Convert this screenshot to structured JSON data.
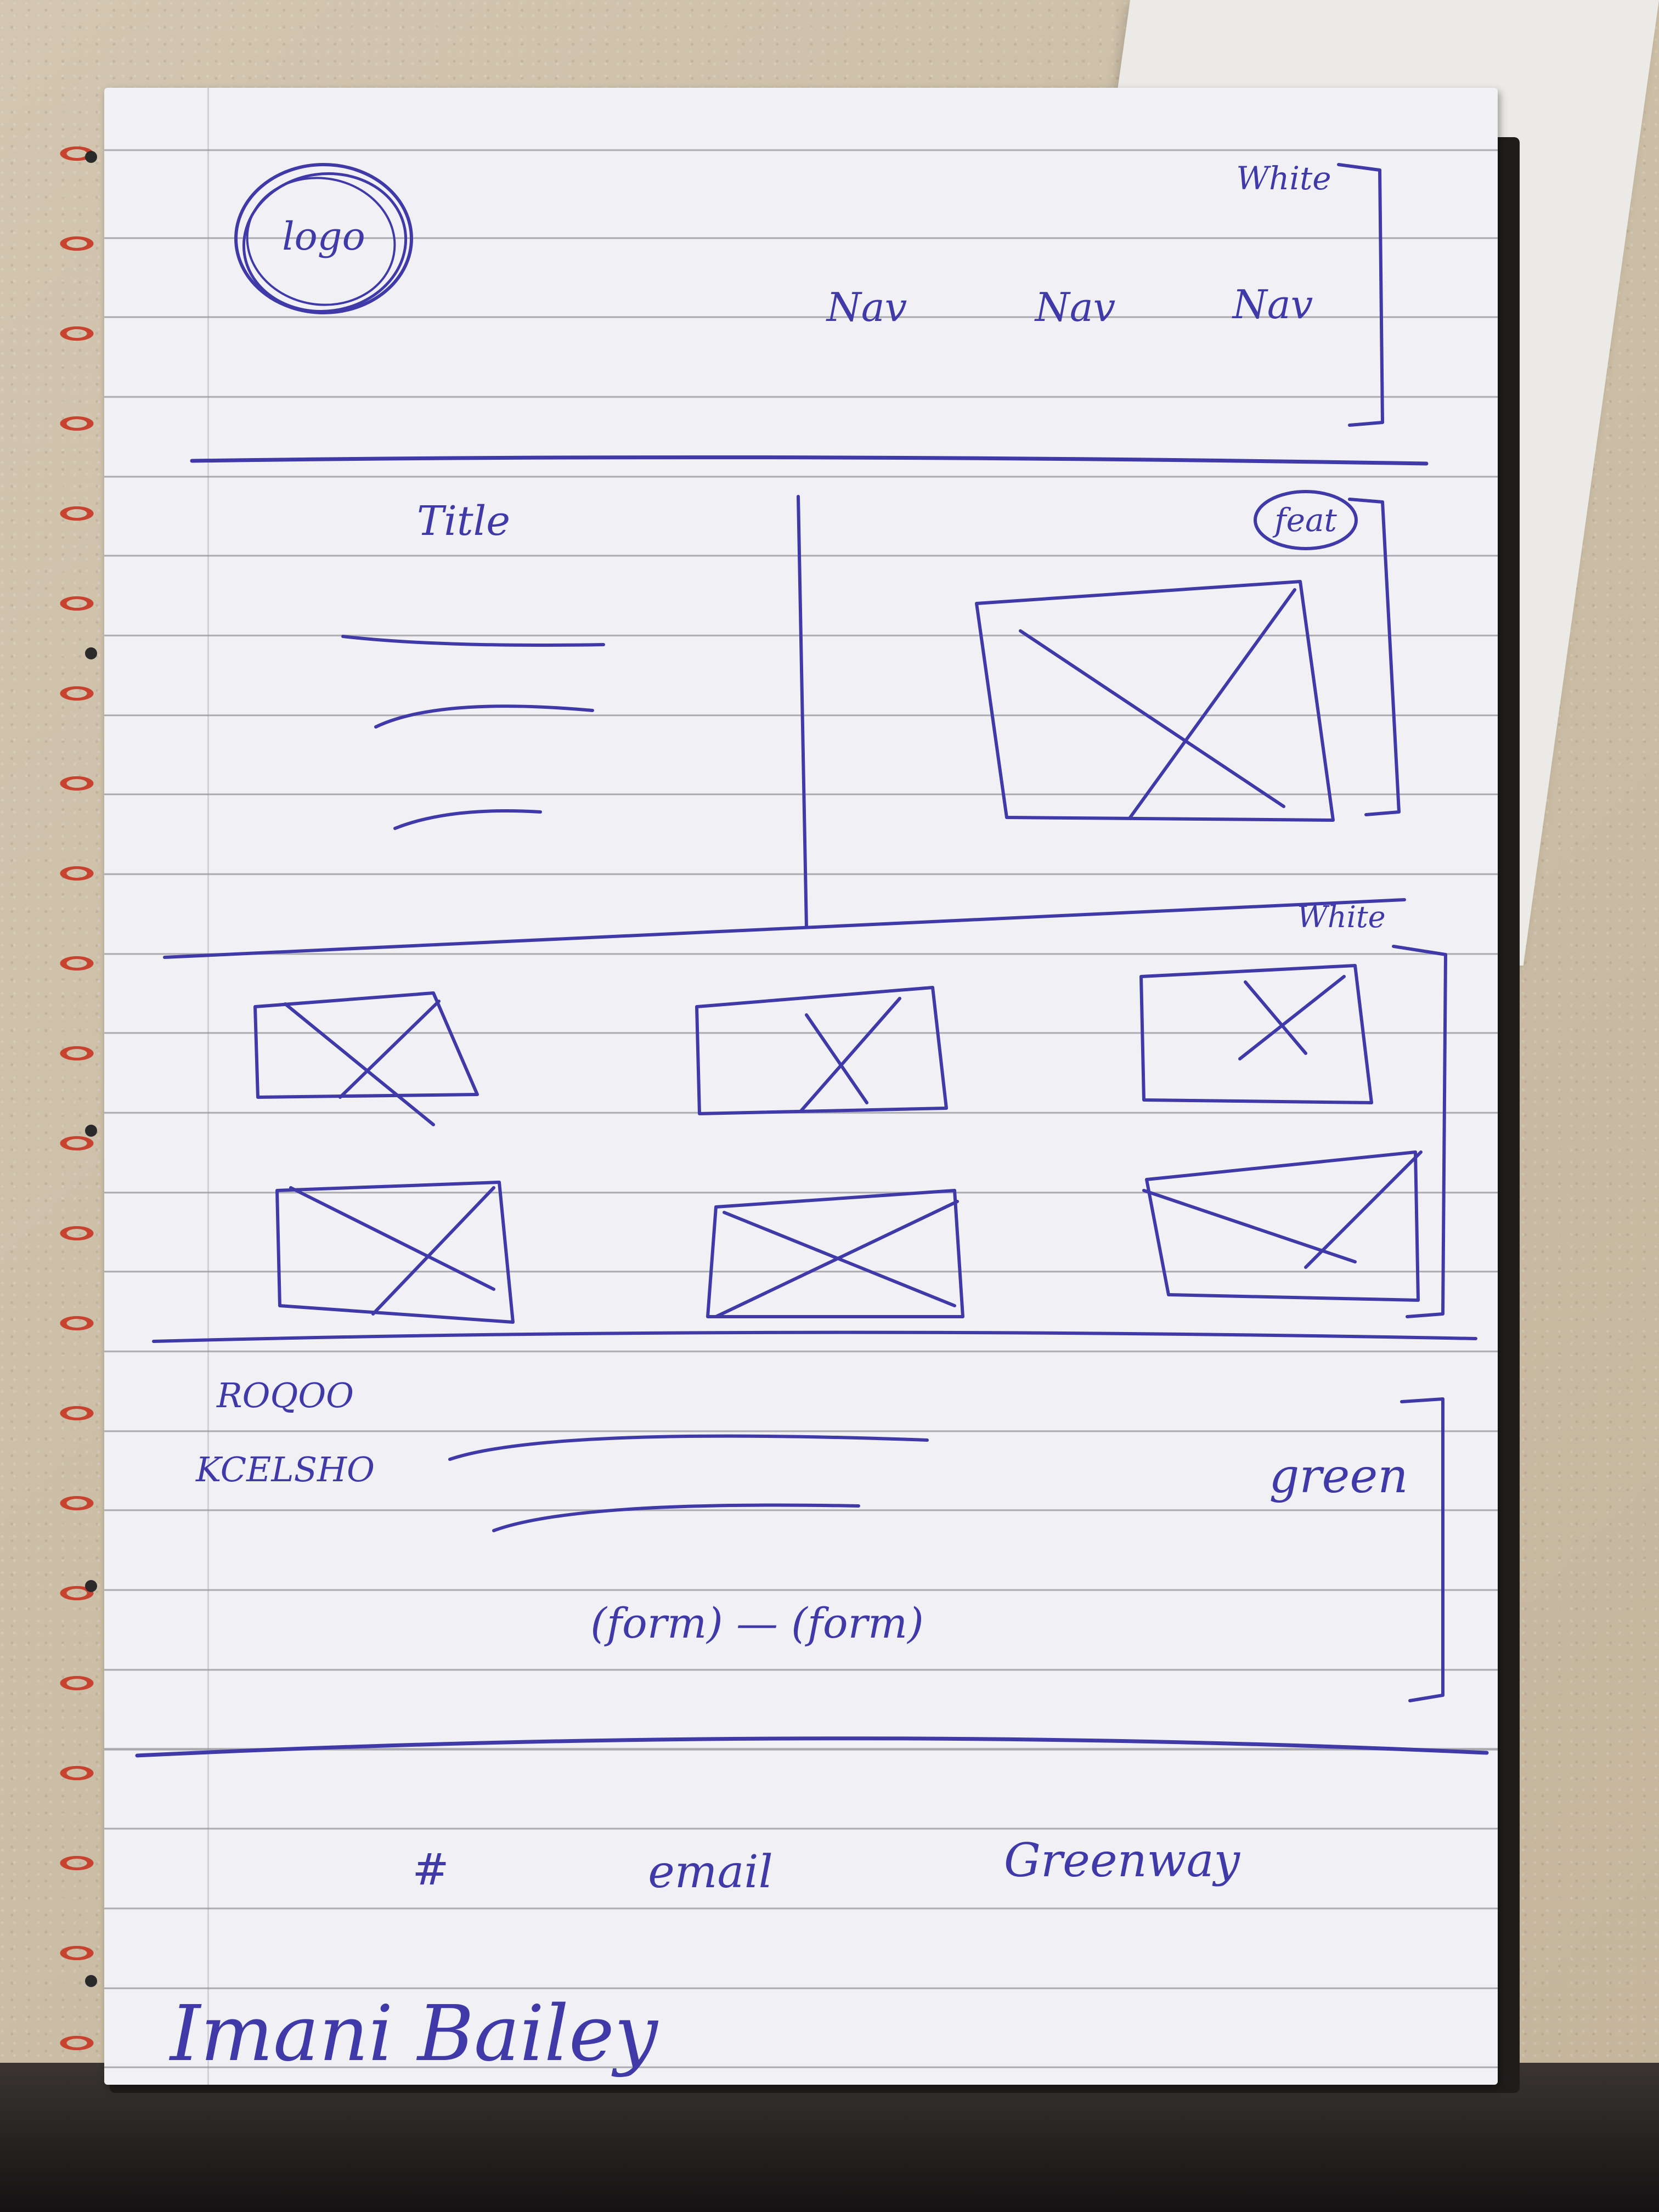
{
  "header": {
    "logo_label": "logo",
    "nav_items": [
      {
        "label": "Nav"
      },
      {
        "label": "Nav"
      },
      {
        "label": "Nav"
      }
    ],
    "bg_note": "White"
  },
  "hero": {
    "title": "Title",
    "feature_label": "feat"
  },
  "gallery": {
    "bg_note": "White"
  },
  "contact": {
    "scribble_top": "ROQOO",
    "scribble_bottom": "KCELSHO",
    "form_text": "(form) — (form)",
    "bg_note": "green"
  },
  "footer": {
    "items": [
      {
        "label": "#"
      },
      {
        "label": "email"
      },
      {
        "label": "Greenway"
      }
    ]
  },
  "signature": "Imani Bailey",
  "colors": {
    "ink": "#3f3aa8",
    "spiral": "#c8432f",
    "paper": "#f1f1f5"
  }
}
